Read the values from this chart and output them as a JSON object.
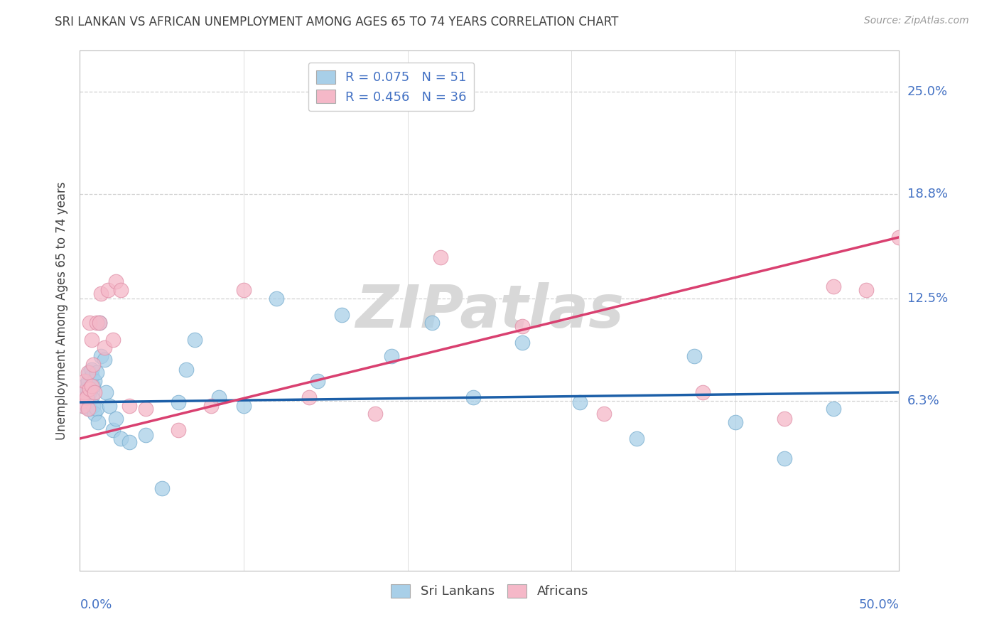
{
  "title": "SRI LANKAN VS AFRICAN UNEMPLOYMENT AMONG AGES 65 TO 74 YEARS CORRELATION CHART",
  "source": "Source: ZipAtlas.com",
  "ylabel": "Unemployment Among Ages 65 to 74 years",
  "ytick_labels": [
    "6.3%",
    "12.5%",
    "18.8%",
    "25.0%"
  ],
  "ytick_values": [
    0.063,
    0.125,
    0.188,
    0.25
  ],
  "xmin": 0.0,
  "xmax": 0.5,
  "ymin": -0.04,
  "ymax": 0.275,
  "sri_lankan_color": "#a8cfe8",
  "african_color": "#f5b8c8",
  "sri_lankan_line_color": "#1c5fa8",
  "african_line_color": "#d94070",
  "legend_R_sri": "R = 0.075",
  "legend_N_sri": "N = 51",
  "legend_R_afr": "R = 0.456",
  "legend_N_afr": "N = 36",
  "sri_lankans_x": [
    0.001,
    0.002,
    0.002,
    0.003,
    0.003,
    0.004,
    0.004,
    0.005,
    0.005,
    0.006,
    0.006,
    0.006,
    0.007,
    0.007,
    0.007,
    0.008,
    0.008,
    0.009,
    0.009,
    0.01,
    0.01,
    0.011,
    0.012,
    0.013,
    0.015,
    0.016,
    0.018,
    0.02,
    0.022,
    0.025,
    0.03,
    0.04,
    0.05,
    0.06,
    0.065,
    0.07,
    0.085,
    0.1,
    0.12,
    0.145,
    0.16,
    0.19,
    0.215,
    0.24,
    0.27,
    0.305,
    0.34,
    0.375,
    0.4,
    0.43,
    0.46
  ],
  "sri_lankans_y": [
    0.063,
    0.06,
    0.068,
    0.065,
    0.072,
    0.06,
    0.07,
    0.063,
    0.075,
    0.058,
    0.068,
    0.08,
    0.078,
    0.065,
    0.082,
    0.072,
    0.06,
    0.055,
    0.075,
    0.058,
    0.08,
    0.05,
    0.11,
    0.09,
    0.088,
    0.068,
    0.06,
    0.045,
    0.052,
    0.04,
    0.038,
    0.042,
    0.01,
    0.062,
    0.082,
    0.1,
    0.065,
    0.06,
    0.125,
    0.075,
    0.115,
    0.09,
    0.11,
    0.065,
    0.098,
    0.062,
    0.04,
    0.09,
    0.05,
    0.028,
    0.058
  ],
  "africans_x": [
    0.001,
    0.002,
    0.003,
    0.003,
    0.004,
    0.005,
    0.005,
    0.006,
    0.006,
    0.007,
    0.007,
    0.008,
    0.009,
    0.01,
    0.012,
    0.013,
    0.015,
    0.017,
    0.02,
    0.022,
    0.025,
    0.03,
    0.04,
    0.06,
    0.08,
    0.1,
    0.14,
    0.18,
    0.22,
    0.27,
    0.32,
    0.38,
    0.43,
    0.46,
    0.48,
    0.5
  ],
  "africans_y": [
    0.063,
    0.06,
    0.068,
    0.075,
    0.065,
    0.058,
    0.08,
    0.11,
    0.07,
    0.072,
    0.1,
    0.085,
    0.068,
    0.11,
    0.11,
    0.128,
    0.095,
    0.13,
    0.1,
    0.135,
    0.13,
    0.06,
    0.058,
    0.045,
    0.06,
    0.13,
    0.065,
    0.055,
    0.15,
    0.108,
    0.055,
    0.068,
    0.052,
    0.132,
    0.13,
    0.162
  ],
  "background_color": "#ffffff",
  "grid_color": "#d0d0d0",
  "axis_label_color": "#4472c4",
  "title_color": "#404040",
  "ylabel_color": "#404040",
  "legend_text_color": "#4472c4",
  "watermark_color": "#d8d8d8"
}
